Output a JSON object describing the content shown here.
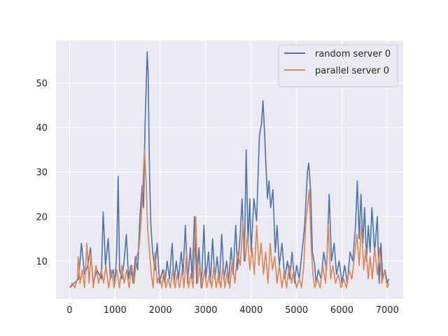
{
  "chart_data": {
    "type": "line",
    "title": "",
    "xlabel": "",
    "ylabel": "",
    "xlim": [
      -300,
      7350
    ],
    "ylim": [
      1.5,
      59.5
    ],
    "x_ticks": [
      0,
      1000,
      2000,
      3000,
      4000,
      5000,
      6000,
      7000
    ],
    "y_ticks": [
      10,
      20,
      30,
      40,
      50
    ],
    "x_tick_labels": [
      "0",
      "1000",
      "2000",
      "3000",
      "4000",
      "5000",
      "6000",
      "7000"
    ],
    "y_tick_labels": [
      "10",
      "20",
      "30",
      "40",
      "50"
    ],
    "grid": true,
    "legend_position": "top-right",
    "series": [
      {
        "name": "random server 0",
        "color": "#4c72b0",
        "points": [
          [
            0,
            4
          ],
          [
            100,
            5
          ],
          [
            200,
            6
          ],
          [
            260,
            14
          ],
          [
            330,
            7
          ],
          [
            400,
            9
          ],
          [
            460,
            13
          ],
          [
            520,
            5
          ],
          [
            600,
            8
          ],
          [
            700,
            6
          ],
          [
            740,
            21
          ],
          [
            790,
            9
          ],
          [
            850,
            15
          ],
          [
            900,
            6
          ],
          [
            960,
            8
          ],
          [
            1000,
            5
          ],
          [
            1040,
            13
          ],
          [
            1070,
            29
          ],
          [
            1100,
            8
          ],
          [
            1150,
            6
          ],
          [
            1200,
            10
          ],
          [
            1250,
            16
          ],
          [
            1300,
            6
          ],
          [
            1350,
            9
          ],
          [
            1400,
            5
          ],
          [
            1450,
            11
          ],
          [
            1500,
            8
          ],
          [
            1550,
            20
          ],
          [
            1600,
            27
          ],
          [
            1630,
            22
          ],
          [
            1660,
            40
          ],
          [
            1690,
            50
          ],
          [
            1710,
            57
          ],
          [
            1730,
            52
          ],
          [
            1760,
            30
          ],
          [
            1790,
            18
          ],
          [
            1830,
            12
          ],
          [
            1880,
            8
          ],
          [
            1930,
            14
          ],
          [
            1980,
            5
          ],
          [
            2050,
            8
          ],
          [
            2100,
            5
          ],
          [
            2150,
            10
          ],
          [
            2200,
            6
          ],
          [
            2260,
            14
          ],
          [
            2300,
            5
          ],
          [
            2350,
            10
          ],
          [
            2400,
            6
          ],
          [
            2460,
            12
          ],
          [
            2500,
            7
          ],
          [
            2550,
            18
          ],
          [
            2600,
            5
          ],
          [
            2660,
            13
          ],
          [
            2700,
            6
          ],
          [
            2750,
            20
          ],
          [
            2800,
            5
          ],
          [
            2850,
            13
          ],
          [
            2900,
            4
          ],
          [
            2960,
            18
          ],
          [
            3000,
            6
          ],
          [
            3060,
            12
          ],
          [
            3100,
            5
          ],
          [
            3150,
            15
          ],
          [
            3200,
            6
          ],
          [
            3250,
            11
          ],
          [
            3300,
            5
          ],
          [
            3350,
            16
          ],
          [
            3400,
            6
          ],
          [
            3460,
            10
          ],
          [
            3500,
            5
          ],
          [
            3560,
            13
          ],
          [
            3600,
            7
          ],
          [
            3660,
            18
          ],
          [
            3700,
            8
          ],
          [
            3760,
            16
          ],
          [
            3800,
            24
          ],
          [
            3850,
            10
          ],
          [
            3890,
            35
          ],
          [
            3930,
            14
          ],
          [
            3970,
            24
          ],
          [
            4000,
            12
          ],
          [
            4060,
            24
          ],
          [
            4120,
            19
          ],
          [
            4180,
            38
          ],
          [
            4230,
            41
          ],
          [
            4260,
            46
          ],
          [
            4290,
            40
          ],
          [
            4320,
            33
          ],
          [
            4360,
            24
          ],
          [
            4390,
            28
          ],
          [
            4430,
            22
          ],
          [
            4480,
            26
          ],
          [
            4530,
            12
          ],
          [
            4570,
            18
          ],
          [
            4620,
            9
          ],
          [
            4680,
            14
          ],
          [
            4740,
            6
          ],
          [
            4800,
            10
          ],
          [
            4850,
            6
          ],
          [
            4900,
            12
          ],
          [
            4960,
            5
          ],
          [
            5000,
            9
          ],
          [
            5060,
            6
          ],
          [
            5120,
            12
          ],
          [
            5180,
            18
          ],
          [
            5240,
            30
          ],
          [
            5270,
            32
          ],
          [
            5310,
            26
          ],
          [
            5350,
            12
          ],
          [
            5400,
            9
          ],
          [
            5430,
            5
          ],
          [
            5480,
            8
          ],
          [
            5540,
            6
          ],
          [
            5600,
            12
          ],
          [
            5660,
            8
          ],
          [
            5720,
            25
          ],
          [
            5770,
            10
          ],
          [
            5830,
            14
          ],
          [
            5880,
            7
          ],
          [
            5940,
            10
          ],
          [
            6000,
            5
          ],
          [
            6060,
            9
          ],
          [
            6120,
            5
          ],
          [
            6180,
            12
          ],
          [
            6240,
            10
          ],
          [
            6300,
            18
          ],
          [
            6340,
            28
          ],
          [
            6380,
            15
          ],
          [
            6420,
            25
          ],
          [
            6460,
            14
          ],
          [
            6500,
            22
          ],
          [
            6540,
            10
          ],
          [
            6580,
            18
          ],
          [
            6620,
            12
          ],
          [
            6660,
            22
          ],
          [
            6720,
            12
          ],
          [
            6780,
            20
          ],
          [
            6820,
            5
          ],
          [
            6860,
            14
          ],
          [
            6900,
            6
          ],
          [
            6950,
            8
          ],
          [
            7000,
            5
          ],
          [
            7030,
            6
          ]
        ]
      },
      {
        "name": "parallel server 0",
        "color": "#dd8452",
        "points": [
          [
            0,
            4
          ],
          [
            60,
            5
          ],
          [
            120,
            4
          ],
          [
            170,
            6
          ],
          [
            190,
            11
          ],
          [
            230,
            5
          ],
          [
            280,
            8
          ],
          [
            330,
            4
          ],
          [
            380,
            14
          ],
          [
            430,
            5
          ],
          [
            470,
            12
          ],
          [
            520,
            4
          ],
          [
            580,
            9
          ],
          [
            640,
            5
          ],
          [
            700,
            8
          ],
          [
            750,
            5
          ],
          [
            800,
            9
          ],
          [
            860,
            4
          ],
          [
            920,
            8
          ],
          [
            980,
            4
          ],
          [
            1040,
            8
          ],
          [
            1100,
            4
          ],
          [
            1150,
            9
          ],
          [
            1200,
            5
          ],
          [
            1260,
            8
          ],
          [
            1310,
            4
          ],
          [
            1370,
            9
          ],
          [
            1420,
            5
          ],
          [
            1480,
            11
          ],
          [
            1530,
            13
          ],
          [
            1570,
            18
          ],
          [
            1610,
            26
          ],
          [
            1650,
            35
          ],
          [
            1690,
            27
          ],
          [
            1720,
            17
          ],
          [
            1760,
            12
          ],
          [
            1800,
            7
          ],
          [
            1840,
            4
          ],
          [
            1880,
            12
          ],
          [
            1930,
            5
          ],
          [
            1980,
            7
          ],
          [
            2030,
            4
          ],
          [
            2080,
            8
          ],
          [
            2120,
            4
          ],
          [
            2170,
            6
          ],
          [
            2220,
            4
          ],
          [
            2270,
            8
          ],
          [
            2320,
            4
          ],
          [
            2370,
            7
          ],
          [
            2420,
            4
          ],
          [
            2480,
            8
          ],
          [
            2520,
            4
          ],
          [
            2580,
            12
          ],
          [
            2620,
            4
          ],
          [
            2670,
            7
          ],
          [
            2720,
            4
          ],
          [
            2780,
            20
          ],
          [
            2820,
            5
          ],
          [
            2870,
            9
          ],
          [
            2920,
            4
          ],
          [
            2970,
            8
          ],
          [
            3020,
            4
          ],
          [
            3080,
            7
          ],
          [
            3130,
            4
          ],
          [
            3180,
            9
          ],
          [
            3230,
            4
          ],
          [
            3280,
            7
          ],
          [
            3330,
            4
          ],
          [
            3380,
            9
          ],
          [
            3420,
            4
          ],
          [
            3480,
            8
          ],
          [
            3530,
            4
          ],
          [
            3580,
            10
          ],
          [
            3640,
            5
          ],
          [
            3700,
            12
          ],
          [
            3760,
            9
          ],
          [
            3820,
            19
          ],
          [
            3870,
            10
          ],
          [
            3920,
            16
          ],
          [
            3970,
            8
          ],
          [
            4020,
            13
          ],
          [
            4070,
            7
          ],
          [
            4120,
            18
          ],
          [
            4170,
            9
          ],
          [
            4220,
            14
          ],
          [
            4270,
            7
          ],
          [
            4320,
            12
          ],
          [
            4370,
            5
          ],
          [
            4420,
            14
          ],
          [
            4470,
            8
          ],
          [
            4520,
            11
          ],
          [
            4570,
            5
          ],
          [
            4620,
            9
          ],
          [
            4680,
            4
          ],
          [
            4730,
            8
          ],
          [
            4780,
            4
          ],
          [
            4840,
            9
          ],
          [
            4890,
            5
          ],
          [
            4940,
            8
          ],
          [
            5000,
            4
          ],
          [
            5060,
            6
          ],
          [
            5110,
            4
          ],
          [
            5160,
            9
          ],
          [
            5200,
            18
          ],
          [
            5250,
            23
          ],
          [
            5280,
            26
          ],
          [
            5320,
            14
          ],
          [
            5360,
            7
          ],
          [
            5400,
            4
          ],
          [
            5460,
            6
          ],
          [
            5520,
            4
          ],
          [
            5580,
            9
          ],
          [
            5640,
            5
          ],
          [
            5700,
            18
          ],
          [
            5750,
            6
          ],
          [
            5800,
            9
          ],
          [
            5860,
            5
          ],
          [
            5920,
            7
          ],
          [
            5980,
            4
          ],
          [
            6040,
            6
          ],
          [
            6100,
            4
          ],
          [
            6160,
            8
          ],
          [
            6220,
            6
          ],
          [
            6280,
            11
          ],
          [
            6330,
            16
          ],
          [
            6380,
            9
          ],
          [
            6430,
            18
          ],
          [
            6480,
            8
          ],
          [
            6530,
            13
          ],
          [
            6580,
            6
          ],
          [
            6620,
            11
          ],
          [
            6670,
            6
          ],
          [
            6720,
            13
          ],
          [
            6780,
            7
          ],
          [
            6830,
            13
          ],
          [
            6880,
            5
          ],
          [
            6940,
            8
          ],
          [
            7000,
            4
          ],
          [
            7030,
            5
          ]
        ]
      }
    ]
  }
}
